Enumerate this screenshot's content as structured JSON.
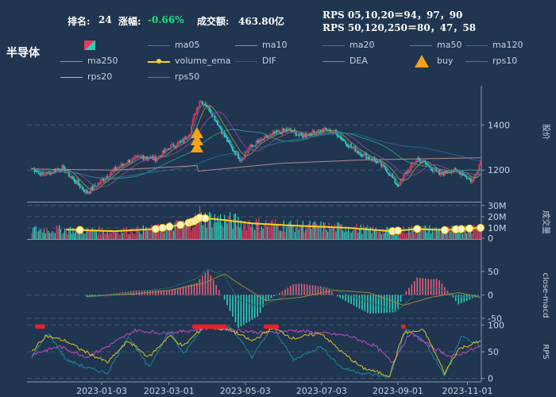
{
  "header": {
    "rank_label": "排名:",
    "rank_value": "24",
    "change_label": "涨幅:",
    "change_value": "-0.66%",
    "turnover_label": "成交额:",
    "turnover_value": "463.80亿",
    "rps_short": "RPS 05,10,20＝94，97，90",
    "rps_long": "RPS 50,120,250＝80，47，58"
  },
  "title": "半导体",
  "legend": [
    {
      "name": "candle",
      "label": "",
      "color": "#e83a5a"
    },
    {
      "name": "ma05",
      "label": "ma05",
      "color": "#3a7fb8"
    },
    {
      "name": "ma10",
      "label": "ma10",
      "color": "#9a9a3a"
    },
    {
      "name": "ma20",
      "label": "ma20",
      "color": "#8a4a9a"
    },
    {
      "name": "ma50",
      "label": "ma50",
      "color": "#2aa08a"
    },
    {
      "name": "ma120",
      "label": "ma120",
      "color": "#2a6a9a"
    },
    {
      "name": "ma250",
      "label": "ma250",
      "color": "#b08a8a"
    },
    {
      "name": "volume_ema",
      "label": "volume_ema",
      "color": "#ffd21a"
    },
    {
      "name": "DIF",
      "label": "DIF",
      "color": "#1a6a6a"
    },
    {
      "name": "DEA",
      "label": "DEA",
      "color": "#9a8a3a"
    },
    {
      "name": "buy",
      "label": "buy",
      "color": "#f5a21a"
    },
    {
      "name": "rps10",
      "label": "rps10",
      "color": "#1a8a9a"
    },
    {
      "name": "rps20",
      "label": "rps20",
      "color": "#d8c21a"
    },
    {
      "name": "rps50",
      "label": "rps50",
      "color": "#c24ac2"
    }
  ],
  "chart_data": {
    "type": "candlestick-with-indicators",
    "x_ticks": [
      "2023-01-03",
      "2023-03-01",
      "2023-05-03",
      "2023-07-03",
      "2023-09-01",
      "2023-11-01"
    ],
    "price_panel": {
      "ylabel": "股价",
      "yticks": [
        1200,
        1400
      ],
      "ylim": [
        1060,
        1560
      ],
      "close_keypoints": [
        [
          0,
          1210
        ],
        [
          8,
          1180
        ],
        [
          15,
          1195
        ],
        [
          22,
          1210
        ],
        [
          30,
          1160
        ],
        [
          40,
          1100
        ],
        [
          50,
          1150
        ],
        [
          60,
          1200
        ],
        [
          70,
          1240
        ],
        [
          80,
          1260
        ],
        [
          90,
          1250
        ],
        [
          100,
          1300
        ],
        [
          110,
          1330
        ],
        [
          115,
          1370
        ],
        [
          118,
          1440
        ],
        [
          122,
          1510
        ],
        [
          128,
          1480
        ],
        [
          134,
          1420
        ],
        [
          140,
          1350
        ],
        [
          146,
          1290
        ],
        [
          152,
          1250
        ],
        [
          158,
          1300
        ],
        [
          166,
          1330
        ],
        [
          176,
          1360
        ],
        [
          186,
          1380
        ],
        [
          196,
          1350
        ],
        [
          206,
          1370
        ],
        [
          214,
          1380
        ],
        [
          222,
          1360
        ],
        [
          230,
          1310
        ],
        [
          240,
          1270
        ],
        [
          250,
          1240
        ],
        [
          258,
          1200
        ],
        [
          266,
          1130
        ],
        [
          272,
          1190
        ],
        [
          280,
          1250
        ],
        [
          288,
          1220
        ],
        [
          296,
          1180
        ],
        [
          304,
          1200
        ],
        [
          312,
          1190
        ],
        [
          320,
          1150
        ],
        [
          326,
          1240
        ]
      ],
      "ma250_keypoints": [
        [
          0,
          1205
        ],
        [
          60,
          1200
        ],
        [
          120,
          1220
        ],
        [
          121,
          1195
        ],
        [
          180,
          1230
        ],
        [
          240,
          1245
        ],
        [
          326,
          1255
        ]
      ],
      "buy_signals_bar_index": [
        120
      ]
    },
    "volume_panel": {
      "ylabel": "成交量",
      "yticks": [
        "10M",
        "20M",
        "30M"
      ],
      "ylim": [
        0,
        32
      ],
      "volume_ema_keypoints": [
        [
          25,
          8.5
        ],
        [
          60,
          7
        ],
        [
          90,
          9
        ],
        [
          110,
          13
        ],
        [
          118,
          16
        ],
        [
          122,
          19
        ],
        [
          140,
          17
        ],
        [
          160,
          14
        ],
        [
          190,
          12
        ],
        [
          230,
          10
        ],
        [
          250,
          8
        ],
        [
          262,
          7
        ],
        [
          280,
          9
        ],
        [
          300,
          8
        ],
        [
          326,
          10
        ]
      ],
      "highlighted_indices": [
        35,
        90,
        95,
        100,
        108,
        114,
        116,
        118,
        120,
        122,
        126,
        262,
        266,
        280,
        300,
        308,
        312,
        318,
        326
      ]
    },
    "macd_panel": {
      "ylabel": "close-macd",
      "yticks": [
        -50,
        0,
        50
      ],
      "ylim": [
        -55,
        60
      ],
      "dif_keypoints": [
        [
          40,
          -5
        ],
        [
          70,
          5
        ],
        [
          100,
          15
        ],
        [
          120,
          35
        ],
        [
          128,
          55
        ],
        [
          140,
          40
        ],
        [
          150,
          -10
        ],
        [
          165,
          -25
        ],
        [
          190,
          5
        ],
        [
          215,
          15
        ],
        [
          240,
          -10
        ],
        [
          265,
          -35
        ],
        [
          280,
          5
        ],
        [
          295,
          15
        ],
        [
          310,
          -5
        ],
        [
          326,
          -5
        ]
      ],
      "dea_keypoints": [
        [
          40,
          -3
        ],
        [
          75,
          2
        ],
        [
          100,
          10
        ],
        [
          125,
          25
        ],
        [
          140,
          45
        ],
        [
          150,
          25
        ],
        [
          170,
          -12
        ],
        [
          195,
          -5
        ],
        [
          220,
          10
        ],
        [
          245,
          5
        ],
        [
          270,
          -22
        ],
        [
          290,
          -5
        ],
        [
          310,
          5
        ],
        [
          326,
          -5
        ]
      ]
    },
    "rps_panel": {
      "ylabel": "RPS",
      "yticks": [
        0,
        50,
        100
      ],
      "ylim": [
        -5,
        105
      ],
      "rps20_keypoints": [
        [
          0,
          50
        ],
        [
          10,
          80
        ],
        [
          25,
          70
        ],
        [
          35,
          55
        ],
        [
          55,
          30
        ],
        [
          70,
          70
        ],
        [
          85,
          40
        ],
        [
          100,
          80
        ],
        [
          110,
          60
        ],
        [
          125,
          98
        ],
        [
          145,
          90
        ],
        [
          160,
          70
        ],
        [
          175,
          95
        ],
        [
          190,
          75
        ],
        [
          210,
          85
        ],
        [
          225,
          50
        ],
        [
          240,
          20
        ],
        [
          260,
          5
        ],
        [
          270,
          85
        ],
        [
          285,
          90
        ],
        [
          300,
          10
        ],
        [
          310,
          55
        ],
        [
          326,
          70
        ]
      ],
      "rps10_keypoints": [
        [
          0,
          40
        ],
        [
          12,
          85
        ],
        [
          25,
          35
        ],
        [
          40,
          20
        ],
        [
          55,
          10
        ],
        [
          70,
          80
        ],
        [
          85,
          20
        ],
        [
          100,
          90
        ],
        [
          110,
          45
        ],
        [
          125,
          98
        ],
        [
          145,
          95
        ],
        [
          160,
          40
        ],
        [
          175,
          98
        ],
        [
          190,
          35
        ],
        [
          210,
          60
        ],
        [
          225,
          20
        ],
        [
          240,
          10
        ],
        [
          260,
          3
        ],
        [
          272,
          92
        ],
        [
          285,
          70
        ],
        [
          300,
          5
        ],
        [
          312,
          80
        ],
        [
          326,
          60
        ]
      ],
      "rps50_keypoints": [
        [
          0,
          45
        ],
        [
          20,
          60
        ],
        [
          40,
          40
        ],
        [
          55,
          60
        ],
        [
          75,
          90
        ],
        [
          95,
          85
        ],
        [
          110,
          88
        ],
        [
          130,
          95
        ],
        [
          150,
          90
        ],
        [
          170,
          85
        ],
        [
          190,
          90
        ],
        [
          210,
          85
        ],
        [
          230,
          80
        ],
        [
          250,
          60
        ],
        [
          262,
          30
        ],
        [
          275,
          85
        ],
        [
          290,
          60
        ],
        [
          305,
          40
        ],
        [
          326,
          60
        ]
      ],
      "highlighted_indices": [
        4,
        6,
        8,
        118,
        120,
        122,
        124,
        126,
        128,
        130,
        132,
        134,
        136,
        138,
        140,
        170,
        172,
        174,
        176,
        178,
        270
      ]
    }
  }
}
